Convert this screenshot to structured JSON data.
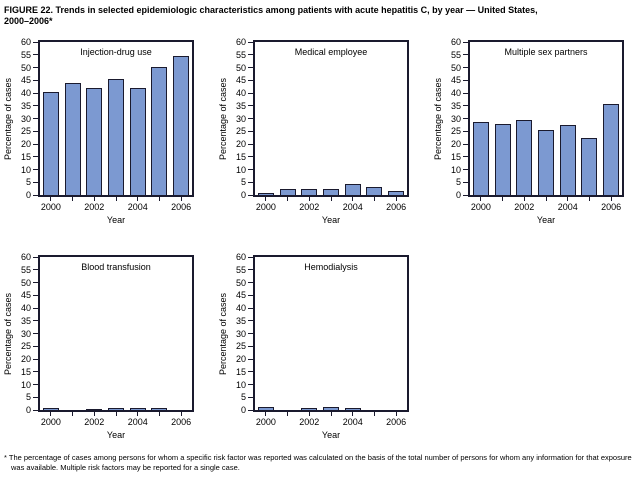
{
  "figure": {
    "title_line1": "FIGURE 22. Trends in selected epidemiologic characteristics among patients with acute hepatitis C, by year — United States,",
    "title_line2": "2000–2006*",
    "footnote": "* The percentage of cases among persons for whom a specific risk factor was reported was calculated on the basis of the total number of persons for whom any information for that exposure was available. Multiple risk factors may be reported for a single case."
  },
  "colors": {
    "bar_fill": "#7c99d1",
    "bar_border": "#1a1a2e",
    "axis": "#1a1a2e",
    "text": "#000000"
  },
  "chart_data": [
    {
      "type": "bar",
      "title": "Injection-drug use",
      "categories": [
        "2000",
        "2001",
        "2002",
        "2003",
        "2004",
        "2005",
        "2006"
      ],
      "values": [
        40.3,
        44,
        42,
        45.5,
        42,
        50.3,
        54.5
      ],
      "xlabel": "Year",
      "ylabel": "Percentage of cases",
      "ylim": [
        0,
        60
      ],
      "ytick_step": 5,
      "xtick_labels_shown": [
        "2000",
        "2002",
        "2004",
        "2006"
      ],
      "grid": false,
      "legend": "none"
    },
    {
      "type": "bar",
      "title": "Medical employee",
      "categories": [
        "2000",
        "2001",
        "2002",
        "2003",
        "2004",
        "2005",
        "2006"
      ],
      "values": [
        0.8,
        2.5,
        2.5,
        2.3,
        4.2,
        3.2,
        1.5
      ],
      "xlabel": "Year",
      "ylabel": "Percentage of cases",
      "ylim": [
        0,
        60
      ],
      "ytick_step": 5,
      "xtick_labels_shown": [
        "2000",
        "2002",
        "2004",
        "2006"
      ],
      "grid": false,
      "legend": "none"
    },
    {
      "type": "bar",
      "title": "Multiple sex partners",
      "categories": [
        "2000",
        "2001",
        "2002",
        "2003",
        "2004",
        "2005",
        "2006"
      ],
      "values": [
        28.5,
        28,
        29.5,
        25.5,
        27.5,
        22.5,
        35.8
      ],
      "xlabel": "Year",
      "ylabel": "Percentage of cases",
      "ylim": [
        0,
        60
      ],
      "ytick_step": 5,
      "xtick_labels_shown": [
        "2000",
        "2002",
        "2004",
        "2006"
      ],
      "grid": false,
      "legend": "none"
    },
    {
      "type": "bar",
      "title": "Blood transfusion",
      "categories": [
        "2000",
        "2001",
        "2002",
        "2003",
        "2004",
        "2005",
        "2006"
      ],
      "values": [
        0.8,
        0,
        0.4,
        0.8,
        0.8,
        0.8,
        0
      ],
      "xlabel": "Year",
      "ylabel": "Percentage of cases",
      "ylim": [
        0,
        60
      ],
      "ytick_step": 5,
      "xtick_labels_shown": [
        "2000",
        "2002",
        "2004",
        "2006"
      ],
      "grid": false,
      "legend": "none"
    },
    {
      "type": "bar",
      "title": "Hemodialysis",
      "categories": [
        "2000",
        "2001",
        "2002",
        "2003",
        "2004",
        "2005",
        "2006"
      ],
      "values": [
        1.2,
        0,
        0.7,
        1.2,
        0.7,
        0,
        0
      ],
      "xlabel": "Year",
      "ylabel": "Percentage of cases",
      "ylim": [
        0,
        60
      ],
      "ytick_step": 5,
      "xtick_labels_shown": [
        "2000",
        "2002",
        "2004",
        "2006"
      ],
      "grid": false,
      "legend": "none"
    }
  ]
}
